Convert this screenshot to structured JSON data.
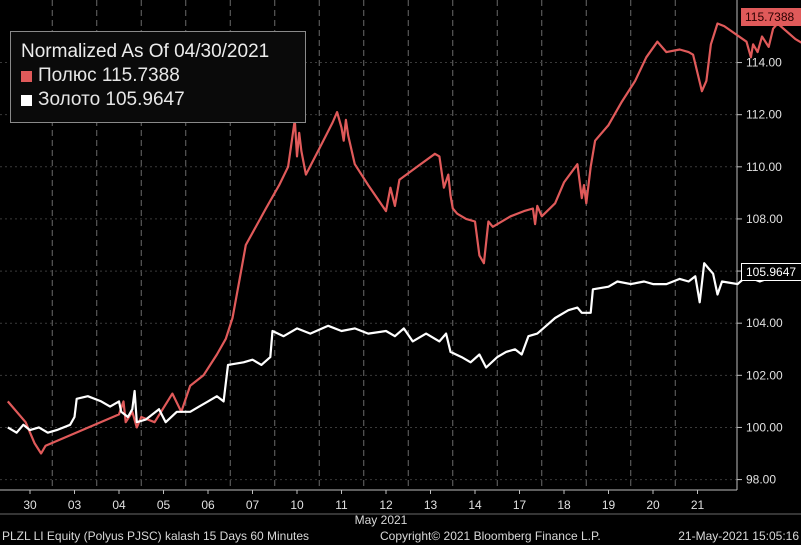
{
  "legend": {
    "title": "Normalized As Of 04/30/2021",
    "items": [
      {
        "label": "Полюс  115.7388",
        "color": "#e05a5a"
      },
      {
        "label": "Золото 105.9647",
        "color": "#ffffff"
      }
    ]
  },
  "footer": {
    "left": "PLZL LI Equity (Polyus PJSC) kalash 15 Days 60 Minutes",
    "center": "Copyright© 2021 Bloomberg Finance L.P.",
    "right": "21-May-2021 15:05:16"
  },
  "month_label": "May 2021",
  "chart_data": {
    "type": "line",
    "categories": [
      "30",
      "03",
      "04",
      "05",
      "06",
      "07",
      "10",
      "11",
      "12",
      "13",
      "14",
      "17",
      "18",
      "19",
      "20",
      "21"
    ],
    "ylim": [
      97.6,
      116.4
    ],
    "yticks": [
      "98.00",
      "100.00",
      "102.00",
      "104.00",
      "106.00",
      "108.00",
      "110.00",
      "112.00",
      "114.00"
    ],
    "grid": true,
    "y_axis_side": "right",
    "series": [
      {
        "name": "Полюс",
        "color": "#e05a5a",
        "last_value_label": "115.7388",
        "values": [
          [
            -0.5,
            101.0
          ],
          [
            -0.1,
            100.2
          ],
          [
            0.1,
            99.4
          ],
          [
            0.25,
            99.0
          ],
          [
            0.35,
            99.3
          ],
          [
            2.0,
            100.5
          ],
          [
            2.1,
            101.0
          ],
          [
            2.15,
            100.2
          ],
          [
            2.3,
            100.6
          ],
          [
            2.4,
            100.0
          ],
          [
            2.5,
            100.4
          ],
          [
            2.8,
            100.2
          ],
          [
            3.2,
            101.3
          ],
          [
            3.4,
            100.6
          ],
          [
            3.6,
            101.6
          ],
          [
            3.9,
            102.0
          ],
          [
            4.2,
            102.8
          ],
          [
            4.4,
            103.4
          ],
          [
            4.55,
            104.2
          ],
          [
            4.7,
            105.6
          ],
          [
            4.85,
            107.0
          ],
          [
            5.3,
            108.4
          ],
          [
            5.6,
            109.3
          ],
          [
            5.8,
            110.0
          ],
          [
            5.95,
            111.8
          ],
          [
            6.0,
            110.4
          ],
          [
            6.05,
            111.3
          ],
          [
            6.1,
            110.6
          ],
          [
            6.2,
            109.7
          ],
          [
            6.5,
            110.7
          ],
          [
            6.8,
            111.7
          ],
          [
            6.9,
            112.1
          ],
          [
            7.0,
            111.5
          ],
          [
            7.05,
            111.0
          ],
          [
            7.1,
            111.8
          ],
          [
            7.15,
            111.2
          ],
          [
            7.3,
            110.1
          ],
          [
            7.6,
            109.3
          ],
          [
            8.0,
            108.3
          ],
          [
            8.1,
            109.2
          ],
          [
            8.2,
            108.5
          ],
          [
            8.3,
            109.5
          ],
          [
            8.7,
            110.0
          ],
          [
            9.1,
            110.5
          ],
          [
            9.2,
            110.4
          ],
          [
            9.3,
            109.2
          ],
          [
            9.4,
            109.7
          ],
          [
            9.45,
            108.9
          ],
          [
            9.5,
            108.4
          ],
          [
            9.6,
            108.2
          ],
          [
            9.8,
            108.0
          ],
          [
            10.0,
            107.9
          ],
          [
            10.1,
            106.6
          ],
          [
            10.2,
            106.3
          ],
          [
            10.3,
            107.9
          ],
          [
            10.4,
            107.7
          ],
          [
            10.8,
            108.1
          ],
          [
            11.1,
            108.3
          ],
          [
            11.3,
            108.4
          ],
          [
            11.35,
            107.8
          ],
          [
            11.4,
            108.5
          ],
          [
            11.5,
            108.1
          ],
          [
            11.8,
            108.6
          ],
          [
            12.0,
            109.4
          ],
          [
            12.3,
            110.1
          ],
          [
            12.4,
            108.8
          ],
          [
            12.45,
            109.3
          ],
          [
            12.5,
            108.6
          ],
          [
            12.6,
            110.0
          ],
          [
            12.7,
            111.0
          ],
          [
            13.0,
            111.6
          ],
          [
            13.3,
            112.5
          ],
          [
            13.6,
            113.3
          ],
          [
            13.85,
            114.2
          ],
          [
            14.1,
            114.8
          ],
          [
            14.3,
            114.4
          ],
          [
            14.6,
            114.5
          ],
          [
            14.8,
            114.4
          ],
          [
            14.9,
            114.3
          ],
          [
            15.0,
            113.6
          ],
          [
            15.1,
            112.9
          ],
          [
            15.2,
            113.3
          ],
          [
            15.3,
            114.7
          ],
          [
            15.45,
            115.5
          ],
          [
            15.6,
            115.4
          ],
          [
            16.1,
            114.8
          ],
          [
            16.2,
            114.2
          ],
          [
            16.25,
            114.7
          ],
          [
            16.35,
            114.4
          ],
          [
            16.45,
            115.0
          ],
          [
            16.6,
            114.6
          ],
          [
            16.7,
            115.3
          ],
          [
            16.8,
            115.5
          ],
          [
            17.2,
            114.9
          ],
          [
            17.5,
            114.6
          ],
          [
            17.75,
            114.9
          ],
          [
            17.8,
            115.5
          ],
          [
            17.9,
            115.74
          ]
        ]
      },
      {
        "name": "Золото",
        "color": "#ffffff",
        "last_value_label": "105.9647",
        "values": [
          [
            -0.5,
            100.0
          ],
          [
            -0.3,
            99.8
          ],
          [
            -0.15,
            100.1
          ],
          [
            0.0,
            99.9
          ],
          [
            0.2,
            100.0
          ],
          [
            0.4,
            99.8
          ],
          [
            0.6,
            99.9
          ],
          [
            0.9,
            100.1
          ],
          [
            1.0,
            100.4
          ],
          [
            1.05,
            101.1
          ],
          [
            1.3,
            101.2
          ],
          [
            1.6,
            101.0
          ],
          [
            1.8,
            100.8
          ],
          [
            2.0,
            101.0
          ],
          [
            2.05,
            100.6
          ],
          [
            2.2,
            100.4
          ],
          [
            2.3,
            100.7
          ],
          [
            2.35,
            101.4
          ],
          [
            2.4,
            100.2
          ],
          [
            2.6,
            100.3
          ],
          [
            2.9,
            100.7
          ],
          [
            3.05,
            100.2
          ],
          [
            3.3,
            100.6
          ],
          [
            3.6,
            100.6
          ],
          [
            3.8,
            100.8
          ],
          [
            4.0,
            101.0
          ],
          [
            4.2,
            101.2
          ],
          [
            4.35,
            101.0
          ],
          [
            4.45,
            102.4
          ],
          [
            4.8,
            102.5
          ],
          [
            5.0,
            102.6
          ],
          [
            5.2,
            102.4
          ],
          [
            5.4,
            102.7
          ],
          [
            5.45,
            103.7
          ],
          [
            5.7,
            103.5
          ],
          [
            6.0,
            103.8
          ],
          [
            6.3,
            103.6
          ],
          [
            6.7,
            103.9
          ],
          [
            7.0,
            103.7
          ],
          [
            7.3,
            103.8
          ],
          [
            7.6,
            103.6
          ],
          [
            8.0,
            103.7
          ],
          [
            8.2,
            103.5
          ],
          [
            8.4,
            103.8
          ],
          [
            8.6,
            103.3
          ],
          [
            8.9,
            103.6
          ],
          [
            9.2,
            103.3
          ],
          [
            9.35,
            103.6
          ],
          [
            9.45,
            102.9
          ],
          [
            9.7,
            102.7
          ],
          [
            9.9,
            102.5
          ],
          [
            10.1,
            102.8
          ],
          [
            10.25,
            102.3
          ],
          [
            10.5,
            102.7
          ],
          [
            10.7,
            102.9
          ],
          [
            10.9,
            103.0
          ],
          [
            11.05,
            102.8
          ],
          [
            11.2,
            103.5
          ],
          [
            11.4,
            103.6
          ],
          [
            11.6,
            103.9
          ],
          [
            11.8,
            104.2
          ],
          [
            12.1,
            104.5
          ],
          [
            12.3,
            104.6
          ],
          [
            12.4,
            104.4
          ],
          [
            12.6,
            104.4
          ],
          [
            12.65,
            105.3
          ],
          [
            13.0,
            105.4
          ],
          [
            13.2,
            105.6
          ],
          [
            13.5,
            105.5
          ],
          [
            13.8,
            105.6
          ],
          [
            14.0,
            105.5
          ],
          [
            14.3,
            105.5
          ],
          [
            14.6,
            105.7
          ],
          [
            14.8,
            105.6
          ],
          [
            14.95,
            105.8
          ],
          [
            15.05,
            104.8
          ],
          [
            15.15,
            106.3
          ],
          [
            15.25,
            106.1
          ],
          [
            15.35,
            105.9
          ],
          [
            15.45,
            105.1
          ],
          [
            15.55,
            105.6
          ],
          [
            15.9,
            105.5
          ],
          [
            16.1,
            105.8
          ],
          [
            16.4,
            105.6
          ],
          [
            16.7,
            105.8
          ],
          [
            16.9,
            106.2
          ],
          [
            17.1,
            105.8
          ],
          [
            17.3,
            105.9
          ],
          [
            17.5,
            105.6
          ],
          [
            17.7,
            105.9
          ],
          [
            17.9,
            105.96
          ]
        ]
      }
    ]
  }
}
